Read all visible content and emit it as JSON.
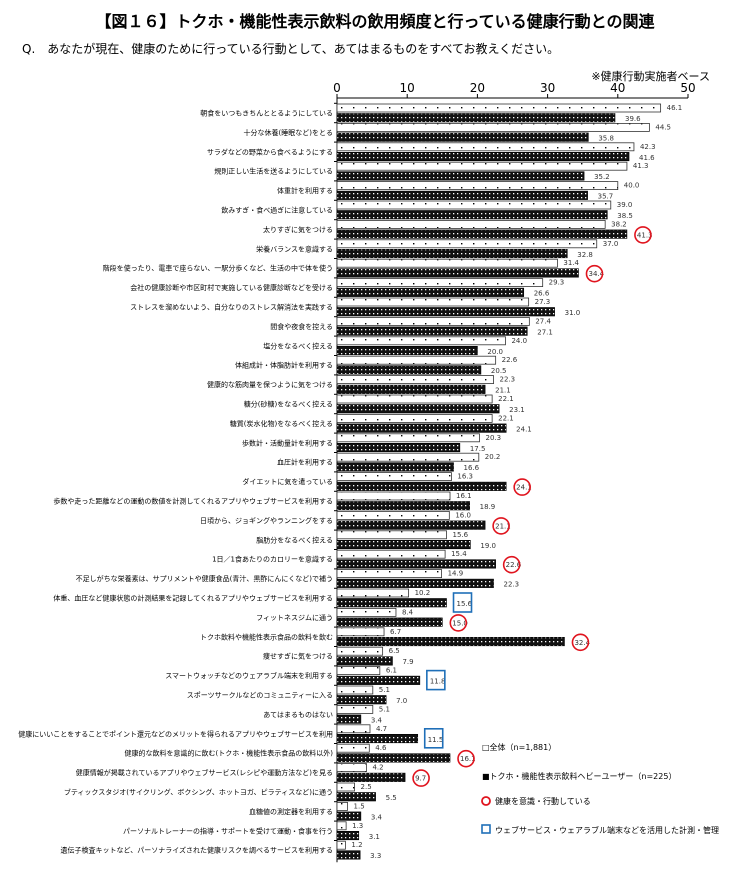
{
  "title": "【図１６】トクホ・機能性表示飲料の飲用頻度と行っている健康行動との関連",
  "question": "Q.　あなたが現在、健康のために行っている行動として、あてはまるものをすべてお教えください。",
  "note": "※健康行動実施者ベース",
  "chart_data": {
    "type": "bar",
    "orientation": "horizontal",
    "xlim": [
      0,
      50
    ],
    "xticks": [
      0,
      10,
      20,
      30,
      40,
      50
    ],
    "legend_position": "bottom-right",
    "categories": [
      "朝食をいつもきちんととるようにしている",
      "十分な休養(睡眠など)をとる",
      "サラダなどの野菜から食べるようにする",
      "規則正しい生活を送るようにしている",
      "体重計を利用する",
      "飲みすぎ・食べ過ぎに注意している",
      "太りすぎに気をつける",
      "栄養バランスを意識する",
      "階段を使ったり、電車で座らない、一駅分歩くなど、生活の中で体を使う",
      "会社の健康診断や市区町村で実施している健康診断などを受ける",
      "ストレスを溜めないよう、自分なりのストレス解消法を実践する",
      "間食や夜食を控える",
      "塩分をなるべく控える",
      "体組成計・体脂肪計を利用する",
      "健康的な筋肉量を保つように気をつける",
      "糖分(砂糖)をなるべく控える",
      "糖質(炭水化物)をなるべく控える",
      "歩数計・活動量計を利用する",
      "血圧計を利用する",
      "ダイエットに気を遣っている",
      "歩数や走った距離などの運動の数値を計測してくれるアプリやウェブサービスを利用する",
      "日頃から、ジョギングやランニングをする",
      "脂肪分をなるべく控える",
      "1日／1食あたりのカロリーを意識する",
      "不足しがちな栄養素は、サプリメントや健康食品(青汁、黒酢にんにくなど)で補う",
      "体重、血圧など健康状態の計測結果を記録してくれるアプリやウェブサービスを利用する",
      "フィットネスジムに通う",
      "トクホ飲料や機能性表示食品の飲料を飲む",
      "痩せすぎに気をつける",
      "スマートウォッチなどのウェアラブル端末を利用する",
      "スポーツサークルなどのコミュニティーに入る",
      "あてはまるものはない",
      "健康にいいことをすることでポイント還元などのメリットを得られるアプリやウェブサービスを利用",
      "健康的な飲料を意識的に飲む(トクホ・機能性表示食品の飲料以外)",
      "健康情報が掲載されているアプリやウェブサービス(レシピや運動方法など)を見る",
      "ブティックスタジオ(サイクリング、ボクシング、ホットヨガ、ピラティスなど)に通う",
      "血糖値の測定器を利用する",
      "パーソナルトレーナーの指導・サポートを受けて運動・食事を行う",
      "遺伝子検査キットなど、パーソナライズされた健康リスクを調べるサービスを利用する"
    ],
    "series": [
      {
        "name": "□全体（n=1,881）",
        "values": [
          46.1,
          44.5,
          42.3,
          41.3,
          40.0,
          39.0,
          38.2,
          37.0,
          31.4,
          29.3,
          27.3,
          27.4,
          24.0,
          22.6,
          22.3,
          22.1,
          22.1,
          20.3,
          20.2,
          16.3,
          16.1,
          16.0,
          15.6,
          15.4,
          14.9,
          10.2,
          8.4,
          6.7,
          6.5,
          6.1,
          5.1,
          5.1,
          4.7,
          4.6,
          4.2,
          2.5,
          1.5,
          1.3,
          1.2
        ]
      },
      {
        "name": "■トクホ・機能性表示飲料ヘビーユーザー（n=225）",
        "values": [
          39.6,
          35.8,
          41.6,
          35.2,
          35.7,
          38.5,
          41.3,
          32.8,
          34.4,
          26.6,
          31.0,
          27.1,
          20.0,
          20.5,
          21.1,
          23.1,
          24.1,
          17.5,
          16.6,
          24.1,
          18.9,
          21.1,
          19.0,
          22.6,
          22.3,
          15.6,
          15.0,
          32.4,
          7.9,
          11.8,
          7.0,
          3.4,
          11.5,
          16.1,
          9.7,
          5.5,
          3.4,
          3.1,
          3.3
        ]
      }
    ],
    "circled_indices": [
      6,
      8,
      19,
      21,
      23,
      26,
      27,
      33,
      34
    ],
    "boxed_indices": [
      25,
      29,
      32
    ],
    "legend": {
      "all": "□全体（n=1,881）",
      "heavy": "■トクホ・機能性表示飲料ヘビーユーザー（n=225）",
      "circle": "健康を意識・行動している",
      "box": "ウェブサービス・ウェアラブル端末などを活用した計測・管理"
    },
    "colors": {
      "circle": "#e0141e",
      "box": "#1f6fb8"
    }
  }
}
